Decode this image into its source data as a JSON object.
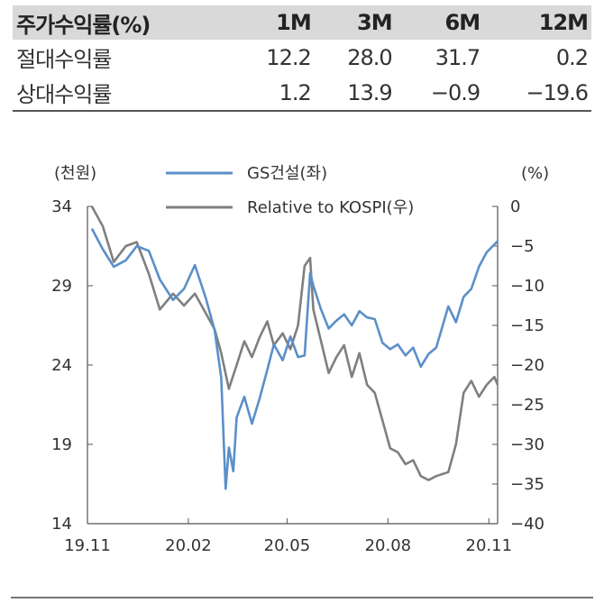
{
  "table": {
    "headers": [
      "주가수익률(%)",
      "1M",
      "3M",
      "6M",
      "12M"
    ],
    "rows": [
      {
        "label": "절대수익률",
        "values": [
          "12.2",
          "28.0",
          "31.7",
          "0.2"
        ]
      },
      {
        "label": "상대수익률",
        "values": [
          "1.2",
          "13.9",
          "−0.9",
          "−19.6"
        ]
      }
    ]
  },
  "chart_data": {
    "type": "line",
    "left_unit": "(천원)",
    "right_unit": "(%)",
    "x_ticks": [
      "19.11",
      "20.02",
      "20.05",
      "20.08",
      "20.11"
    ],
    "left_ticks": [
      "34",
      "29",
      "24",
      "19",
      "14"
    ],
    "right_ticks": [
      "0",
      "−5",
      "−10",
      "−15",
      "−20",
      "−25",
      "−30",
      "−35",
      "−40"
    ],
    "left_range": [
      14,
      34
    ],
    "right_range": [
      -40,
      0
    ],
    "grid": false,
    "legend_position": "top",
    "series": [
      {
        "name": "GS건설(좌)",
        "axis": "left",
        "color": "#5b8fc9",
        "x": [
          "2019-11-15",
          "2019-11-25",
          "2019-12-05",
          "2019-12-16",
          "2019-12-26",
          "2020-01-06",
          "2020-01-16",
          "2020-01-28",
          "2020-02-07",
          "2020-02-17",
          "2020-02-27",
          "2020-03-06",
          "2020-03-12",
          "2020-03-16",
          "2020-03-19",
          "2020-03-23",
          "2020-03-26",
          "2020-04-02",
          "2020-04-09",
          "2020-04-16",
          "2020-04-23",
          "2020-04-29",
          "2020-05-07",
          "2020-05-14",
          "2020-05-21",
          "2020-05-27",
          "2020-06-01",
          "2020-06-04",
          "2020-06-11",
          "2020-06-18",
          "2020-06-25",
          "2020-07-02",
          "2020-07-09",
          "2020-07-16",
          "2020-07-23",
          "2020-07-30",
          "2020-08-06",
          "2020-08-13",
          "2020-08-20",
          "2020-08-27",
          "2020-09-03",
          "2020-09-10",
          "2020-09-17",
          "2020-09-24",
          "2020-10-05",
          "2020-10-12",
          "2020-10-19",
          "2020-10-26",
          "2020-11-02",
          "2020-11-09",
          "2020-11-16",
          "2020-11-19"
        ],
        "values": [
          32.6,
          31.3,
          30.2,
          30.6,
          31.5,
          31.2,
          29.4,
          28.1,
          28.8,
          30.3,
          28.2,
          26.2,
          23.2,
          16.2,
          18.8,
          17.3,
          20.7,
          22.0,
          20.3,
          21.9,
          23.7,
          25.3,
          24.3,
          25.8,
          24.5,
          24.6,
          29.8,
          29.0,
          27.5,
          26.3,
          26.8,
          27.2,
          26.5,
          27.4,
          27.0,
          26.9,
          25.4,
          25.0,
          25.3,
          24.6,
          25.1,
          23.9,
          24.7,
          25.1,
          27.7,
          26.7,
          28.3,
          28.8,
          30.2,
          31.1,
          31.6,
          31.8
        ]
      },
      {
        "name": "Relative to KOSPI(우)",
        "axis": "right",
        "color": "#7f7f7f",
        "x": [
          "2019-11-15",
          "2019-11-25",
          "2019-12-05",
          "2019-12-16",
          "2019-12-26",
          "2020-01-06",
          "2020-01-16",
          "2020-01-28",
          "2020-02-07",
          "2020-02-17",
          "2020-02-27",
          "2020-03-06",
          "2020-03-12",
          "2020-03-19",
          "2020-03-26",
          "2020-04-02",
          "2020-04-09",
          "2020-04-16",
          "2020-04-23",
          "2020-04-29",
          "2020-05-07",
          "2020-05-14",
          "2020-05-21",
          "2020-05-27",
          "2020-06-01",
          "2020-06-04",
          "2020-06-11",
          "2020-06-18",
          "2020-06-25",
          "2020-07-02",
          "2020-07-09",
          "2020-07-16",
          "2020-07-23",
          "2020-07-30",
          "2020-08-06",
          "2020-08-13",
          "2020-08-20",
          "2020-08-27",
          "2020-09-03",
          "2020-09-10",
          "2020-09-17",
          "2020-09-24",
          "2020-10-05",
          "2020-10-12",
          "2020-10-19",
          "2020-10-26",
          "2020-11-02",
          "2020-11-09",
          "2020-11-16",
          "2020-11-19"
        ],
        "values": [
          0.0,
          -2.5,
          -7.0,
          -5.0,
          -4.5,
          -8.5,
          -13.0,
          -11.0,
          -12.5,
          -11.0,
          -13.5,
          -15.5,
          -18.5,
          -23.0,
          -20.0,
          -17.0,
          -19.0,
          -16.5,
          -14.5,
          -17.5,
          -16.0,
          -18.0,
          -15.0,
          -7.5,
          -6.5,
          -13.0,
          -17.0,
          -21.0,
          -19.0,
          -17.5,
          -21.5,
          -18.5,
          -22.5,
          -23.5,
          -27.0,
          -30.5,
          -31.0,
          -32.5,
          -32.0,
          -34.0,
          -34.5,
          -34.0,
          -33.5,
          -30.0,
          -23.5,
          -22.0,
          -24.0,
          -22.5,
          -21.5,
          -22.5
        ]
      }
    ]
  }
}
